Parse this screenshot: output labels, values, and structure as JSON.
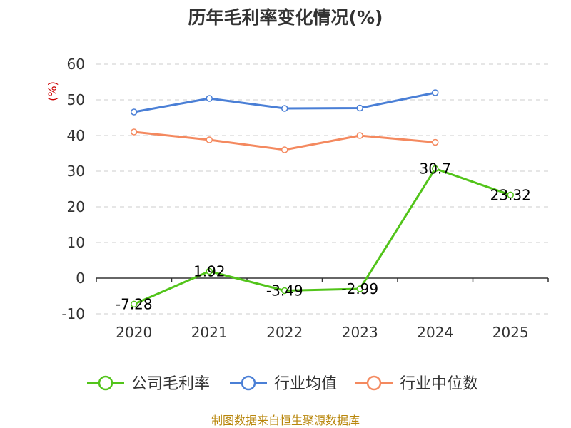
{
  "chart_data": {
    "type": "line",
    "title": "历年毛利率变化情况(%)",
    "ylabel": "(%)",
    "xlabel": "",
    "categories": [
      "2020",
      "2021",
      "2022",
      "2023",
      "2024",
      "2025"
    ],
    "ylim": [
      -10,
      60
    ],
    "yticks": [
      -10,
      0,
      10,
      20,
      30,
      40,
      50,
      60
    ],
    "grid": true,
    "legend_position": "bottom",
    "series": [
      {
        "name": "公司毛利率",
        "color": "#52c41a",
        "values": [
          -7.28,
          1.92,
          -3.49,
          -2.99,
          30.7,
          23.32
        ],
        "labels": [
          "-7.28",
          "1.92",
          "-3.49",
          "-2.99",
          "30.7",
          "23.32"
        ]
      },
      {
        "name": "行业均值",
        "color": "#4a7fd6",
        "values": [
          46.6,
          50.4,
          47.6,
          47.7,
          52.0,
          null
        ]
      },
      {
        "name": "行业中位数",
        "color": "#f4895f",
        "values": [
          41.0,
          38.8,
          36.0,
          40.0,
          38.1,
          null
        ]
      }
    ]
  },
  "source": "制图数据来自恒生聚源数据库"
}
